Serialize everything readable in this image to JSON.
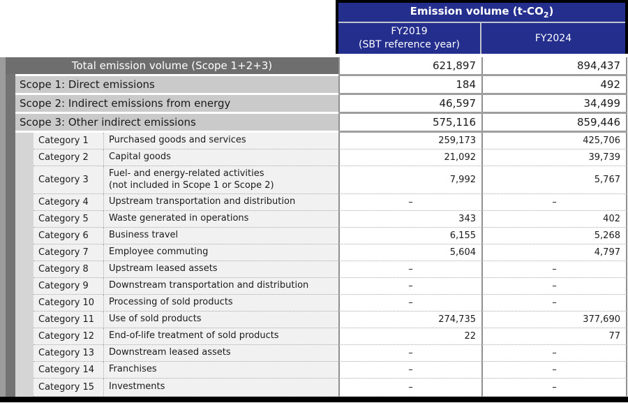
{
  "header": {
    "title_prefix": "Emission volume (t-CO",
    "title_sub": "2",
    "title_suffix": ")",
    "col_fy2019_line1": "FY2019",
    "col_fy2019_line2": "(SBT reference year)",
    "col_fy2024": "FY2024"
  },
  "colors": {
    "header_blue": "#242e8d",
    "frame_black": "#000000",
    "total_row_gray": "#6e6e6e",
    "scope_row_gray": "#cacaca",
    "category_bg": "#f1f1f1",
    "left_strip_dark": "#737373",
    "left_strip_outer": "#9c9c9c",
    "indent_strip": "#d5d5d5"
  },
  "chart_data": {
    "type": "table",
    "title": "Emission volume (t-CO2)",
    "columns": [
      "",
      "FY2019 (SBT reference year)",
      "FY2024"
    ],
    "rows": [
      {
        "type": "total",
        "label": "Total emission volume (Scope 1+2+3)",
        "fy2019": "621,897",
        "fy2024": "894,437"
      },
      {
        "type": "scope",
        "label": "Scope 1: Direct emissions",
        "fy2019": "184",
        "fy2024": "492"
      },
      {
        "type": "scope",
        "label": "Scope 2: Indirect emissions from energy",
        "fy2019": "46,597",
        "fy2024": "34,499"
      },
      {
        "type": "scope",
        "label": "Scope 3: Other indirect emissions",
        "fy2019": "575,116",
        "fy2024": "859,446"
      },
      {
        "type": "category",
        "num": "Category 1",
        "desc": "Purchased goods and services",
        "fy2019": "259,173",
        "fy2024": "425,706"
      },
      {
        "type": "category",
        "num": "Category 2",
        "desc": "Capital goods",
        "fy2019": "21,092",
        "fy2024": "39,739"
      },
      {
        "type": "category",
        "num": "Category 3",
        "desc": "Fuel- and energy-related activities",
        "desc2": "(not included in Scope 1 or Scope 2)",
        "tall": true,
        "fy2019": "7,992",
        "fy2024": "5,767"
      },
      {
        "type": "category",
        "num": "Category 4",
        "desc": "Upstream transportation and distribution",
        "fy2019": "–",
        "fy2024": "–"
      },
      {
        "type": "category",
        "num": "Category 5",
        "desc": "Waste generated in operations",
        "fy2019": "343",
        "fy2024": "402"
      },
      {
        "type": "category",
        "num": "Category 6",
        "desc": "Business travel",
        "fy2019": "6,155",
        "fy2024": "5,268"
      },
      {
        "type": "category",
        "num": "Category 7",
        "desc": "Employee commuting",
        "fy2019": "5,604",
        "fy2024": "4,797"
      },
      {
        "type": "category",
        "num": "Category 8",
        "desc": "Upstream leased assets",
        "fy2019": "–",
        "fy2024": "–"
      },
      {
        "type": "category",
        "num": "Category 9",
        "desc": "Downstream transportation and distribution",
        "fy2019": "–",
        "fy2024": "–"
      },
      {
        "type": "category",
        "num": "Category 10",
        "desc": "Processing of sold products",
        "fy2019": "–",
        "fy2024": "–"
      },
      {
        "type": "category",
        "num": "Category 11",
        "desc": "Use of sold products",
        "fy2019": "274,735",
        "fy2024": "377,690"
      },
      {
        "type": "category",
        "num": "Category 12",
        "desc": "End-of-life treatment of sold products",
        "fy2019": "22",
        "fy2024": "77"
      },
      {
        "type": "category",
        "num": "Category 13",
        "desc": "Downstream leased assets",
        "fy2019": "–",
        "fy2024": "–"
      },
      {
        "type": "category",
        "num": "Category 14",
        "desc": "Franchises",
        "fy2019": "–",
        "fy2024": "–"
      },
      {
        "type": "category",
        "num": "Category 15",
        "desc": "Investments",
        "fy2019": "–",
        "fy2024": "–"
      }
    ]
  }
}
